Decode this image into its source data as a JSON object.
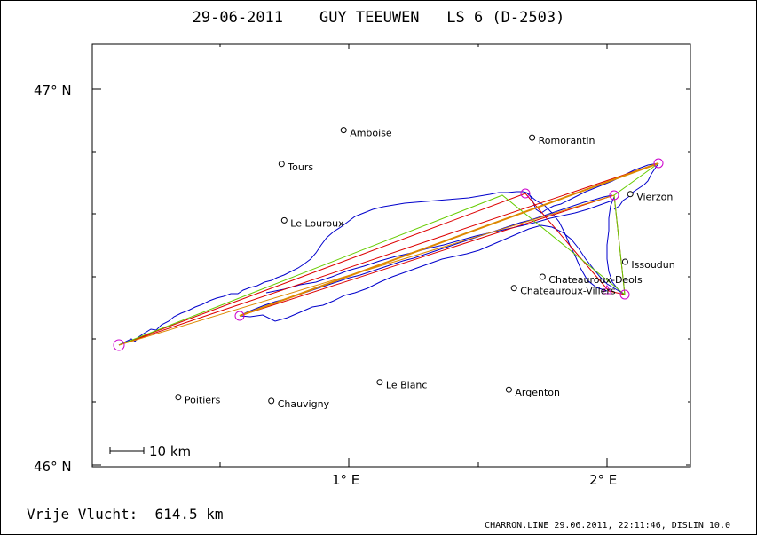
{
  "title": "29-06-2011    GUY TEEUWEN   LS 6 (D-2503)",
  "distance_label": "Vrije Vlucht:",
  "distance_value": "614.5 km",
  "footer": "CHARRON.LINE 29.06.2011, 22:11:46, DISLIN 10.0",
  "scale_label": "10 km",
  "axes": {
    "lat_labels": [
      "47° N",
      "46° N"
    ],
    "lon_labels": [
      "1° E",
      "2° E"
    ]
  },
  "towns": [
    {
      "name": "Amboise",
      "lon": 0.98,
      "lat": 46.89
    },
    {
      "name": "Romorantin",
      "lon": 1.71,
      "lat": 46.87
    },
    {
      "name": "Tours",
      "lon": 0.74,
      "lat": 46.8
    },
    {
      "name": "Vierzon",
      "lon": 2.09,
      "lat": 46.72
    },
    {
      "name": "Le Louroux",
      "lon": 0.75,
      "lat": 46.65
    },
    {
      "name": "Issoudun",
      "lon": 2.07,
      "lat": 46.54
    },
    {
      "name": "Chateauroux-Deols",
      "lon": 1.75,
      "lat": 46.5
    },
    {
      "name": "Chateauroux-Villers",
      "lon": 1.64,
      "lat": 46.47
    },
    {
      "name": "Le Blanc",
      "lon": 1.12,
      "lat": 46.22
    },
    {
      "name": "Argenton",
      "lon": 1.62,
      "lat": 46.2
    },
    {
      "name": "Poitiers",
      "lon": 0.34,
      "lat": 46.18
    },
    {
      "name": "Chauvigny",
      "lon": 0.7,
      "lat": 46.17
    }
  ],
  "colors": {
    "track": "#0000cc",
    "turnpoint": "#cc00cc",
    "leg_red": "#dd0000",
    "leg_green": "#66cc00",
    "leg_orange": "#dd8800"
  }
}
